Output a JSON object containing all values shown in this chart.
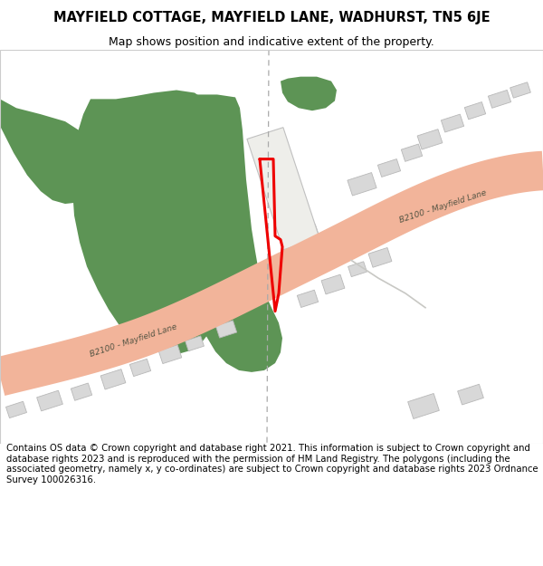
{
  "title_line1": "MAYFIELD COTTAGE, MAYFIELD LANE, WADHURST, TN5 6JE",
  "title_line2": "Map shows position and indicative extent of the property.",
  "footer_text": "Contains OS data © Crown copyright and database right 2021. This information is subject to Crown copyright and database rights 2023 and is reproduced with the permission of HM Land Registry. The polygons (including the associated geometry, namely x, y co-ordinates) are subject to Crown copyright and database rights 2023 Ordnance Survey 100026316.",
  "bg_color": "#f0f0ec",
  "green_color": "#5d9455",
  "road_fill": "#f2b49a",
  "building_fill": "#d8d8d8",
  "building_edge": "#b8b8b8",
  "plot_color": "#ee0000",
  "dash_color": "#aaaaaa",
  "road_text_color": "#555544",
  "title1_fontsize": 10.5,
  "title2_fontsize": 9.0,
  "footer_fontsize": 7.3
}
